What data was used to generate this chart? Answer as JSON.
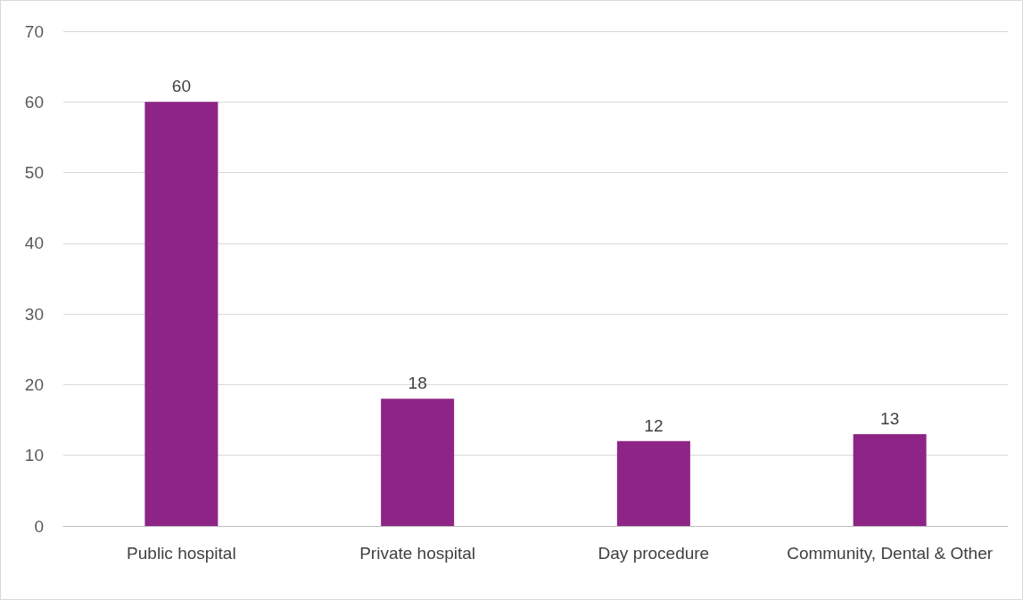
{
  "chart_data": {
    "type": "bar",
    "categories": [
      "Public hospital",
      "Private hospital",
      "Day procedure",
      "Community, Dental & Other"
    ],
    "values": [
      60,
      18,
      12,
      13
    ],
    "color": "#8e2586",
    "ylim": [
      0,
      70
    ],
    "yticks": [
      0,
      10,
      20,
      30,
      40,
      50,
      60,
      70
    ],
    "grid": "y",
    "data_labels": true
  }
}
